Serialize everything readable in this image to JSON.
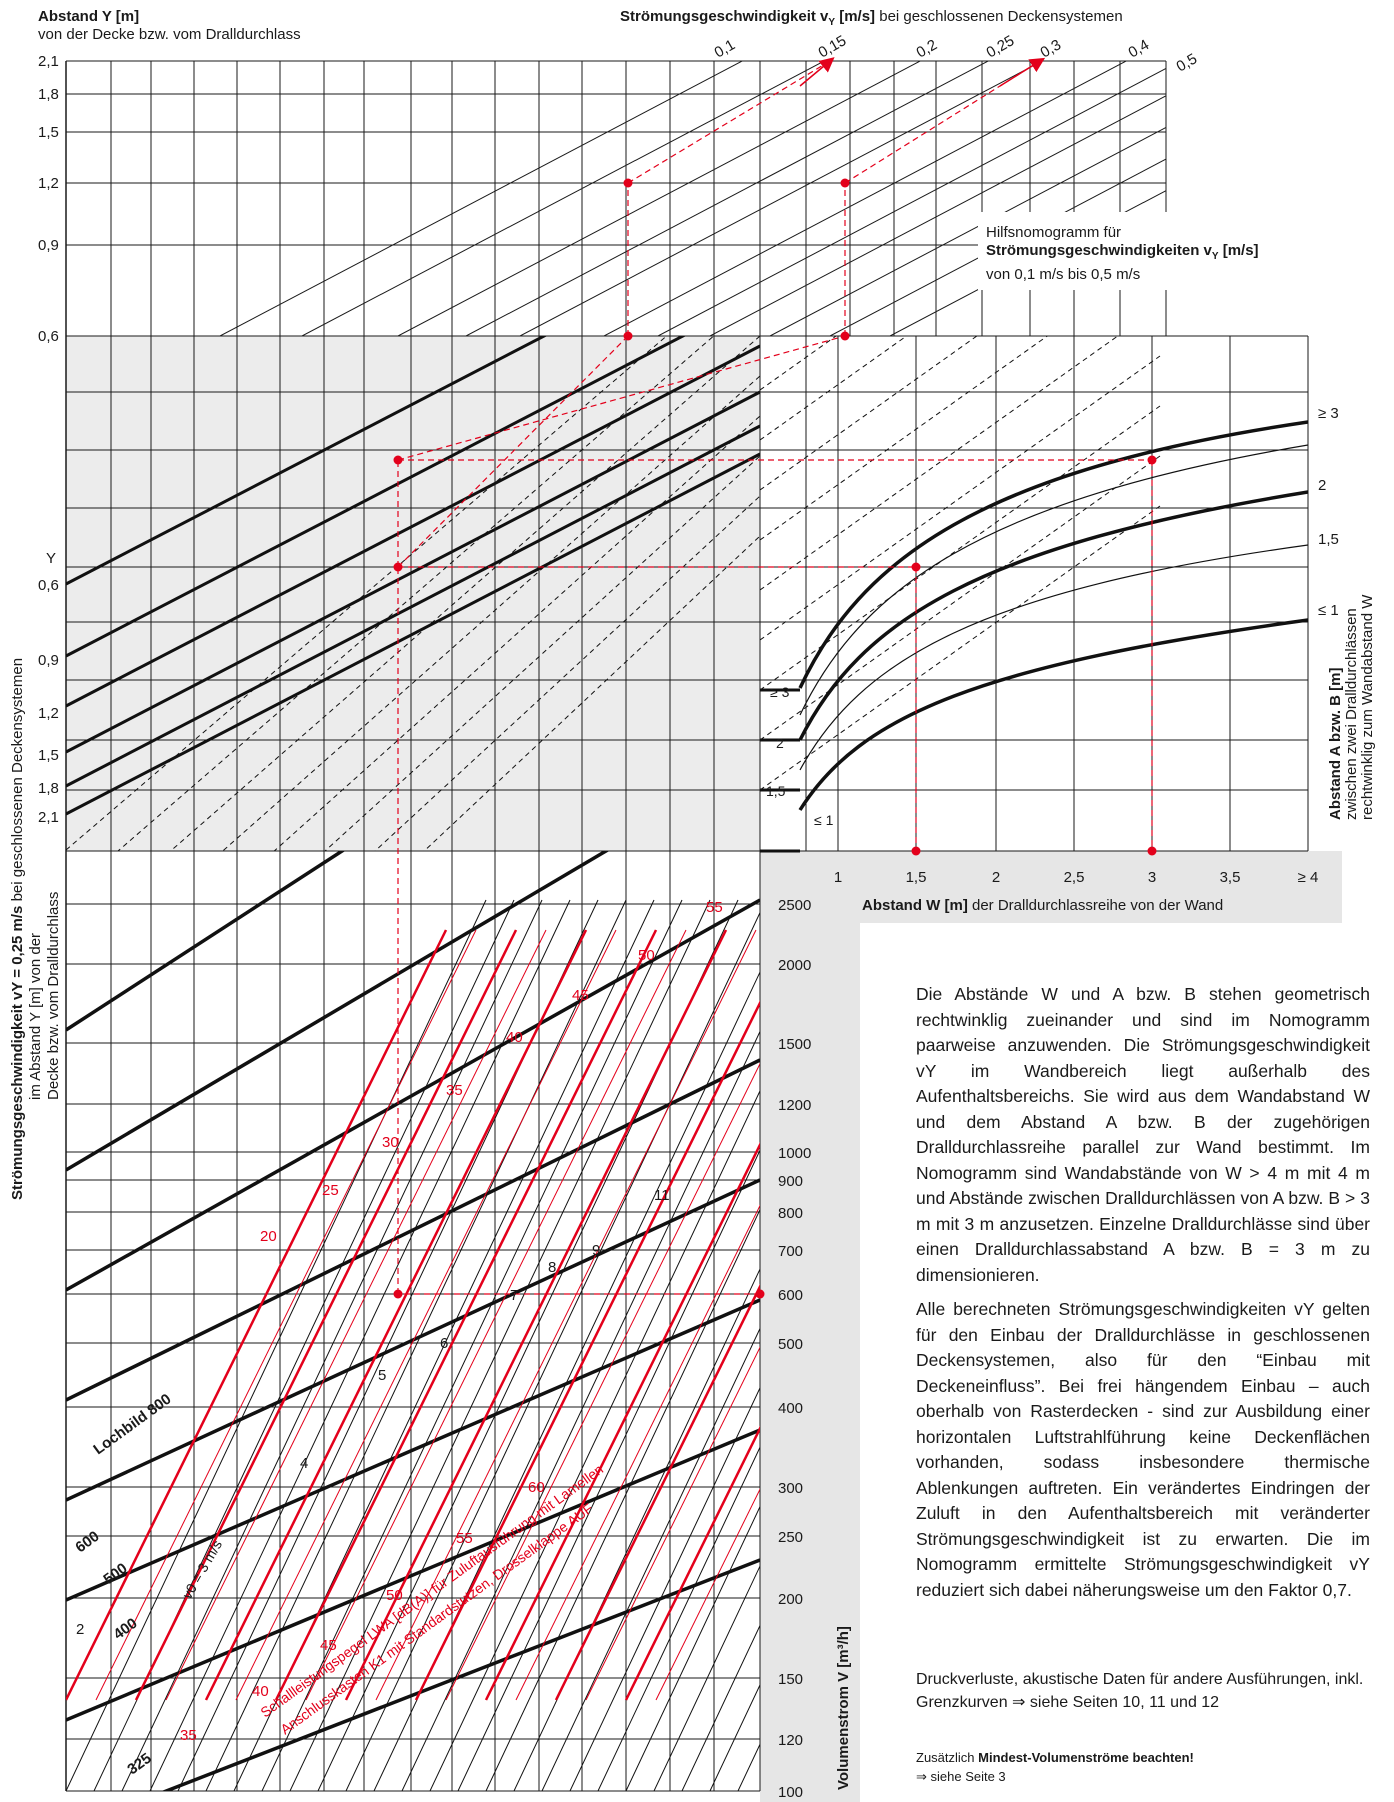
{
  "header": {
    "y_axis_title": "Abstand Y [m]",
    "y_axis_subtitle": "von der Decke bzw. vom Dralldurchlass",
    "top_title_bold": "Strömungsgeschwindigkeit v",
    "top_title_sub": "Y",
    "top_title_unit": " [m/s]",
    "top_title_rest": " bei geschlossenen Deckensystemen"
  },
  "help_box": {
    "line1": "Hilfsnomogramm für",
    "line2_bold": "Strömungsgeschwindigkeiten v",
    "line2_sub": "Y",
    "line2_unit": " [m/s]",
    "line3": "von 0,1 m/s bis 0,5 m/s"
  },
  "left_axis_title": {
    "bold": "Strömungsgeschwindigkeit v",
    "sub": "Y",
    "bold2": " = 0,25 m/s",
    "rest": " bei geschlossenen Deckensystemen",
    "line2": "im Abstand Y [m] von der",
    "line3": "Decke bzw. vom Dralldurchlass"
  },
  "right_axis_title": {
    "bold": "Abstand A bzw. B [m]",
    "line2": "zwischen zwei Dralldurchlässen",
    "line3": "rechtwinklig zum Wandabstand W"
  },
  "bottom_w_title": {
    "bold": "Abstand W [m]",
    "rest": " der Dralldurchlassreihe von der Wand"
  },
  "volume_axis_title": "Volumenstrom V [m³/h]",
  "notes": {
    "p1": "Die Abstände W und A bzw. B stehen geometrisch rechtwinklig zueinander und sind im Nomogramm paarweise anzuwenden. Die Strömungsgeschwindigkeit vY im Wandbereich liegt außerhalb des Aufenthaltsbereichs. Sie wird aus dem Wandabstand W und dem Abstand A bzw. B der zugehörigen Dralldurchlassreihe parallel zur Wand bestimmt. Im Nomogramm sind Wandabstände von W > 4 m mit 4 m und Abstände zwischen Dralldurchlässen von A bzw. B > 3 m mit 3 m anzusetzen. Einzelne Dralldurchlässe sind über einen Dralldurchlassabstand A bzw. B = 3 m zu dimensionieren.",
    "p2": "Alle berechneten Strömungsgeschwindigkeiten vY gelten für den Einbau der Dralldurchlässe in geschlossenen Deckensystemen, also für den “Einbau mit Deckeneinfluss”. Bei frei hängendem Einbau – auch oberhalb von Rasterdecken - sind zur Ausbildung einer horizontalen Luftstrahlführung keine Deckenflächen vorhanden, sodass insbesondere thermische Ablenkungen auftreten. Ein verändertes Eindringen der Zuluft in den Aufenthaltsbereich mit veränderter Strömungsgeschwindigkeit ist zu erwarten. Die im Nomogramm ermittelte Strömungsgeschwindigkeit vY reduziert sich dabei näherungsweise um den Faktor 0,7.",
    "p3": "Druckverluste, akustische Daten für andere Ausführungen, inkl. Grenzkurven ⇒ siehe Seiten 10, 11 und 12",
    "p4_prefix": "Zusätzlich ",
    "p4_bold": "Mindest-Volumenströme beachten!",
    "p5": "⇒ siehe Seite 3"
  },
  "chart_data": {
    "type": "nomogram",
    "top_panel": {
      "y_axis": "Abstand Y [m]",
      "y_ticks": [
        "2,1",
        "1,8",
        "1,5",
        "1,2",
        "0,9",
        "0,6"
      ],
      "velocity_lines": [
        "0,1",
        "0,15",
        "0,2",
        "0,25",
        "0,3",
        "0,4",
        "0,5"
      ]
    },
    "middle_panel": {
      "y_label": "Y",
      "y_ticks": [
        "0,6",
        "0,9",
        "1,2",
        "1,5",
        "1,8",
        "2,1"
      ]
    },
    "wall_panel": {
      "x_axis": "Abstand W [m]",
      "x_ticks": [
        "1",
        "1,5",
        "2",
        "2,5",
        "3",
        "3,5",
        "≥ 4"
      ],
      "curves": [
        "≥ 3",
        "2",
        "1,5",
        "≤ 1"
      ],
      "left_labels": [
        "≥ 3",
        "2",
        "1,5",
        "≤ 1"
      ]
    },
    "bottom_panel": {
      "volume_ticks": [
        "2500",
        "2000",
        "1500",
        "1200",
        "1000",
        "900",
        "800",
        "700",
        "600",
        "500",
        "400",
        "300",
        "250",
        "200",
        "150",
        "120",
        "100"
      ],
      "lochbild_labels": [
        "Lochbild 800",
        "600",
        "500",
        "400",
        "325"
      ],
      "v0_label": "v",
      "v0_sub": "0",
      "v0_rest": " = 3 m/s",
      "v0_numbers": [
        "2",
        "4",
        "5",
        "6",
        "7",
        "8",
        "9",
        "11"
      ],
      "sound_labels_upper": [
        "20",
        "25",
        "30",
        "35",
        "40",
        "45",
        "50",
        "55"
      ],
      "sound_labels_lower": [
        "35",
        "40",
        "45",
        "50",
        "55",
        "60"
      ],
      "sound_caption_line1": "Schallleistungspegel L",
      "sound_caption_sub": "WA",
      "sound_caption_rest": " [dB(A)] für Zuluftausführung mit Lamellen",
      "sound_caption_line2": "Anschlusskasten K1 mit Standardstutzen, Drosselklappe AUF"
    },
    "example_path": {
      "start_volume": "600",
      "start_y": "0,6",
      "w": "1,5",
      "a": "3",
      "result_velocity_1": "0,15",
      "result_velocity_2": "0,3"
    }
  }
}
